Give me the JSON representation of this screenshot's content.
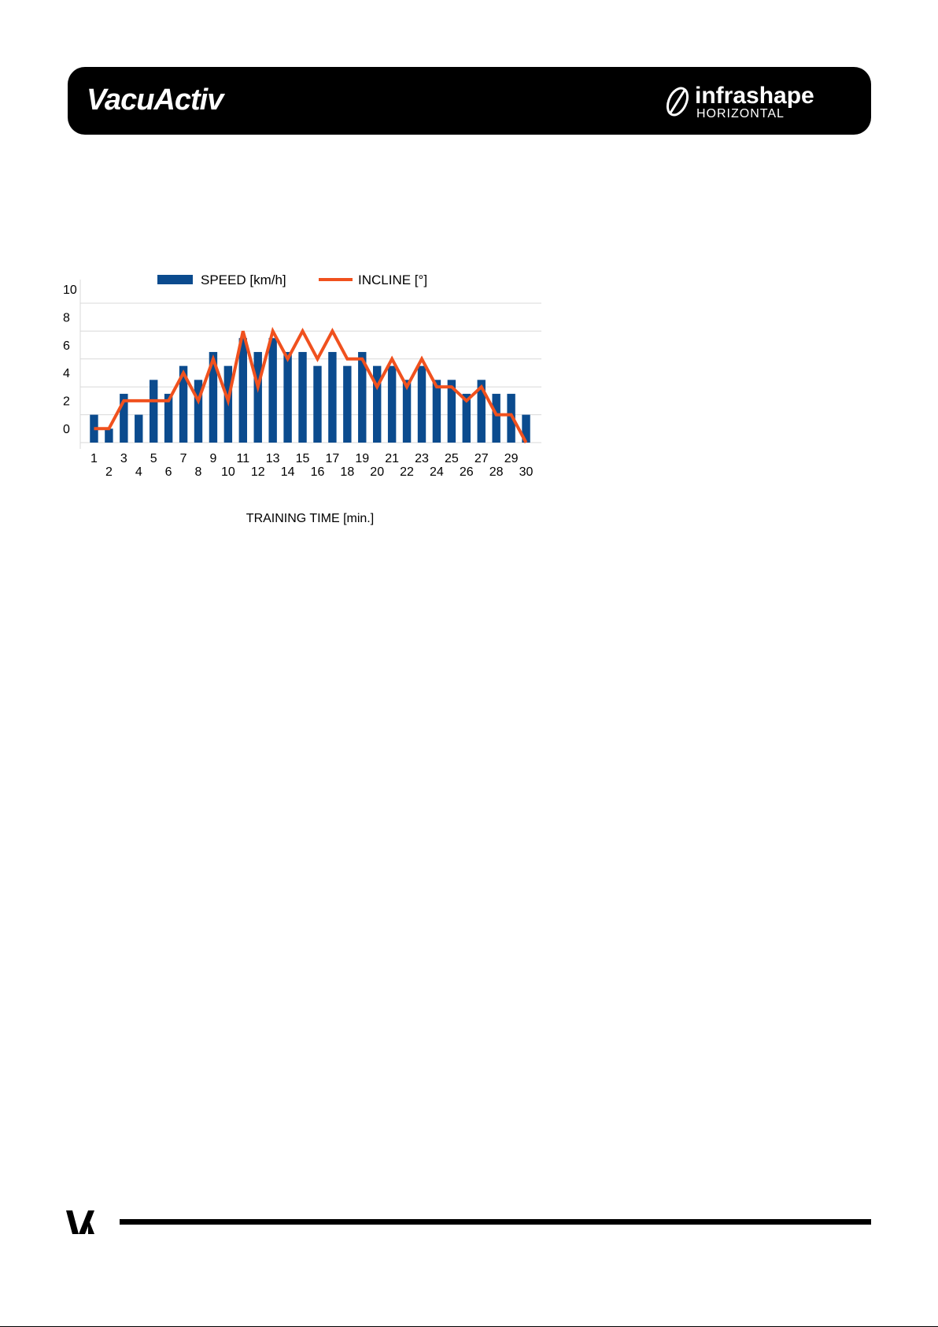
{
  "header": {
    "brand_left": "VacuActiv",
    "brand_right_top": "infrashape",
    "brand_right_bottom": "HORIZONTAL",
    "brand_right_icon": "infrashape-swoosh-icon"
  },
  "footer": {
    "logo_icon": "vacuactiv-va-monogram-icon"
  },
  "colors": {
    "speed_bar": "#0b4b8e",
    "incline_line": "#f0511e",
    "grid": "#d9d9d9",
    "header_bg": "#000000"
  },
  "chart_data": {
    "type": "bar",
    "title": "",
    "xlabel": "TRAINING TIME [min.]",
    "ylabel": "",
    "ylim": [
      0,
      10
    ],
    "yticks": [
      "0",
      "2",
      "4",
      "6",
      "8",
      "10"
    ],
    "grid": true,
    "legend_position": "top",
    "categories": [
      "1",
      "2",
      "3",
      "4",
      "5",
      "6",
      "7",
      "8",
      "9",
      "10",
      "11",
      "12",
      "13",
      "14",
      "15",
      "16",
      "17",
      "18",
      "19",
      "20",
      "21",
      "22",
      "23",
      "24",
      "25",
      "26",
      "27",
      "28",
      "29",
      "30"
    ],
    "series": [
      {
        "name": "SPEED [km/h]",
        "type": "bar",
        "values": [
          2,
          1,
          3.5,
          2,
          4.5,
          3.5,
          5.5,
          4.5,
          6.5,
          5.5,
          7.5,
          6.5,
          7.5,
          6.5,
          6.5,
          5.5,
          6.5,
          5.5,
          6.5,
          5.5,
          5.5,
          4.5,
          5.5,
          4.5,
          4.5,
          3.5,
          4.5,
          3.5,
          3.5,
          2
        ]
      },
      {
        "name": "INCLINE [°]",
        "type": "line",
        "values": [
          1,
          1,
          3,
          3,
          3,
          3,
          5,
          3,
          6,
          3,
          8,
          4,
          8,
          6,
          8,
          6,
          8,
          6,
          6,
          4,
          6,
          4,
          6,
          4,
          4,
          3,
          4,
          2,
          2,
          0
        ]
      }
    ]
  }
}
